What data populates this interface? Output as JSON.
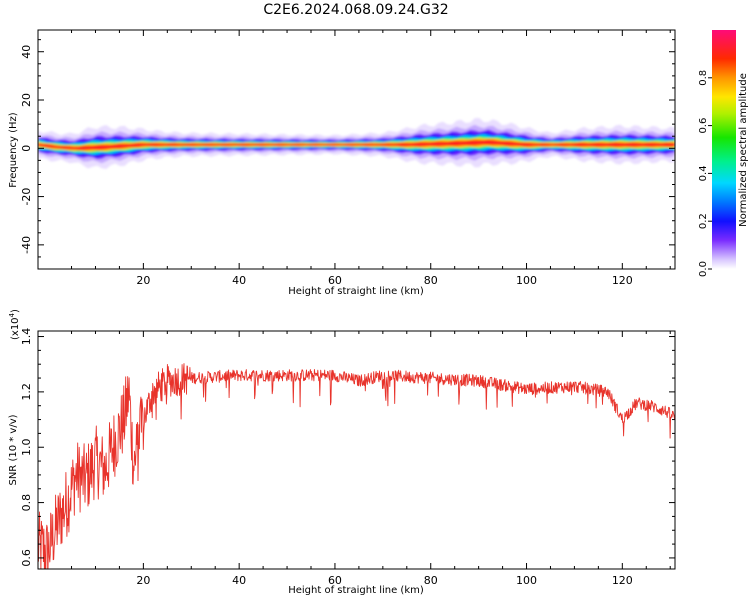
{
  "title": "C2E6.2024.068.09.24.G32",
  "chart_data": [
    {
      "type": "heatmap",
      "xlabel": "Height of straight line (km)",
      "ylabel": "Frequency (Hz)",
      "xlim": [
        -2,
        131
      ],
      "ylim": [
        -50,
        49
      ],
      "xticks": [
        20,
        40,
        60,
        80,
        100,
        120
      ],
      "yticks": [
        -40,
        -20,
        0,
        20,
        40
      ],
      "colorbar": {
        "label": "Normalized spectral amplitude",
        "range": [
          0,
          1
        ],
        "ticks": [
          "0.0",
          "0.2",
          "0.4",
          "0.6",
          "0.8"
        ],
        "ticks_values": [
          0.0,
          0.2,
          0.4,
          0.6,
          0.8
        ]
      },
      "band": {
        "center_hz": [
          [
            -2,
            1.5
          ],
          [
            2,
            0.5
          ],
          [
            6,
            0
          ],
          [
            12,
            0.5
          ],
          [
            20,
            1.5
          ],
          [
            40,
            1.5
          ],
          [
            75,
            1.5
          ],
          [
            85,
            2
          ],
          [
            92,
            2.5
          ],
          [
            100,
            1.5
          ],
          [
            131,
            1.5
          ]
        ],
        "halfwidth_hz": [
          [
            -2,
            3
          ],
          [
            5,
            3
          ],
          [
            10,
            4.5
          ],
          [
            16,
            4
          ],
          [
            22,
            3
          ],
          [
            28,
            2.5
          ],
          [
            60,
            2
          ],
          [
            70,
            2.5
          ],
          [
            78,
            4
          ],
          [
            90,
            5
          ],
          [
            98,
            4
          ],
          [
            105,
            2.5
          ],
          [
            112,
            3.5
          ],
          [
            120,
            4
          ],
          [
            131,
            3.5
          ]
        ]
      }
    },
    {
      "type": "line",
      "xlabel": "Height of straight line (km)",
      "ylabel": "SNR (10 * v/v)",
      "yscale_label": "(x10",
      "yscale_exponent": "4",
      "yscale_close": ")",
      "xlim": [
        -2,
        131
      ],
      "ylim": [
        0.56,
        1.42
      ],
      "xticks": [
        20,
        40,
        60,
        80,
        100,
        120
      ],
      "yticks": [
        "0.6",
        "0.8",
        "1.0",
        "1.2",
        "1.4"
      ],
      "yticks_values": [
        0.6,
        0.8,
        1.0,
        1.2,
        1.4
      ],
      "color": "#e8332b",
      "series": [
        {
          "x": [
            -2,
            0,
            2,
            4,
            6,
            8,
            10,
            12,
            14,
            16,
            17,
            18,
            20,
            22,
            25,
            30,
            40,
            50,
            60,
            65,
            70,
            80,
            90,
            100,
            110,
            117,
            120,
            123,
            126,
            129,
            131
          ],
          "y": [
            0.64,
            0.62,
            0.72,
            0.8,
            0.9,
            0.88,
            0.95,
            0.92,
            1.02,
            1.1,
            1.2,
            0.92,
            1.1,
            1.2,
            1.24,
            1.25,
            1.26,
            1.26,
            1.26,
            1.24,
            1.26,
            1.25,
            1.24,
            1.21,
            1.22,
            1.2,
            1.1,
            1.16,
            1.15,
            1.13,
            1.11
          ]
        }
      ]
    }
  ]
}
